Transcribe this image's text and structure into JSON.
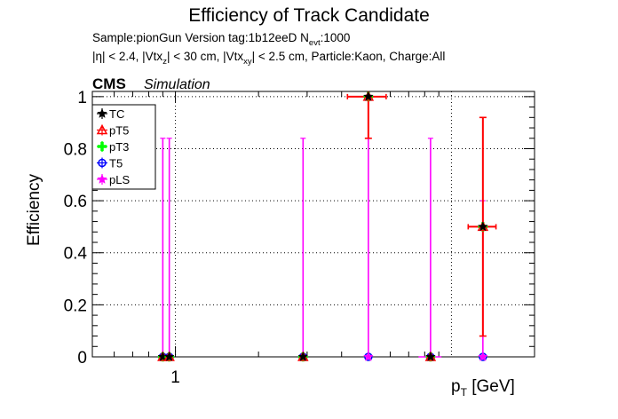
{
  "chart_data": {
    "type": "scatter",
    "title": "Efficiency of Track Candidate",
    "subtitle_line1": "Sample:pionGun   Version tag:1b12eeD  N",
    "subtitle_line1_sub": "evt",
    "subtitle_line1_tail": ":1000",
    "subtitle_line2_parts": [
      {
        "t": "|η| < 2.4, |Vtx",
        "s": false
      },
      {
        "t": "z",
        "s": true
      },
      {
        "t": "| < 30 cm, |Vtx",
        "s": false
      },
      {
        "t": "xy",
        "s": true
      },
      {
        "t": "| < 2.5 cm, Particle:Kaon, Charge:All",
        "s": false
      }
    ],
    "cms_label": "CMS",
    "cms_sublabel": "Simulation",
    "ylabel": "Efficiency",
    "xlabel_main": "p",
    "xlabel_sub": "T",
    "xlabel_unit": " [GeV]",
    "x_scale": "log",
    "xlim": [
      0.5,
      20
    ],
    "ylim": [
      0,
      1.02
    ],
    "yticks": [
      0,
      0.2,
      0.4,
      0.6,
      0.8,
      1
    ],
    "ytick_labels": [
      "0",
      "0.2",
      "0.4",
      "0.6",
      "0.8",
      "1"
    ],
    "xticks": [
      1
    ],
    "xtick_labels": [
      "1"
    ],
    "grid": true,
    "legend_position": "top-left",
    "series": [
      {
        "name": "TC",
        "color": "#000000",
        "marker": "star"
      },
      {
        "name": "pT5",
        "color": "#ff0000",
        "marker": "triangle"
      },
      {
        "name": "pT3",
        "color": "#00ff00",
        "marker": "cross"
      },
      {
        "name": "T5",
        "color": "#0000ff",
        "marker": "circle"
      },
      {
        "name": "pLS",
        "color": "#ff00ff",
        "marker": "star"
      }
    ],
    "points": [
      {
        "x": 0.9,
        "xerr": [
          0.03,
          0.03
        ],
        "y": 0,
        "tc_err": [
          0,
          0.84
        ],
        "pls_err": [
          0,
          0.84
        ]
      },
      {
        "x": 0.95,
        "xerr": [
          0.03,
          0.03
        ],
        "y": 0,
        "tc_err": [
          0,
          0.84
        ],
        "pls_err": [
          0,
          0.84
        ]
      },
      {
        "x": 2.9,
        "xerr": [
          0.1,
          0.1
        ],
        "y": 0,
        "tc_err": [
          0,
          0.84
        ],
        "pls_err": [
          0,
          0.84
        ]
      },
      {
        "x": 5.0,
        "xerr": [
          0.8,
          0.8
        ],
        "y": 1.0,
        "tc_err": [
          0.16,
          0
        ],
        "pls_err": [
          0,
          0.84
        ],
        "pls_y": 0
      },
      {
        "x": 8.4,
        "xerr": [
          0.8,
          0.8
        ],
        "y": 0,
        "tc_err": [
          0,
          0.84
        ],
        "pls_err": [
          0,
          0.84
        ]
      },
      {
        "x": 13.0,
        "xerr": [
          1.5,
          1.5
        ],
        "y": 0.5,
        "tc_err": [
          0.42,
          0.42
        ],
        "pls_err": [
          0,
          0.6
        ],
        "pls_y": 0
      }
    ]
  }
}
